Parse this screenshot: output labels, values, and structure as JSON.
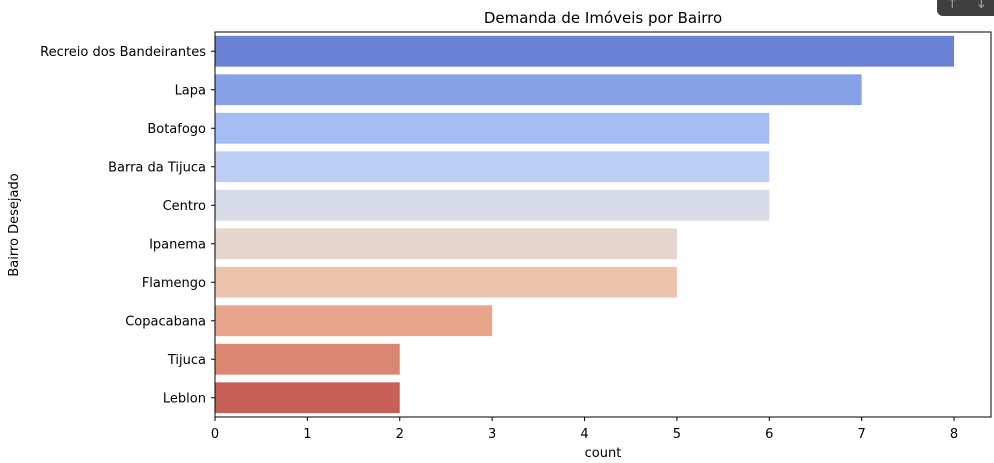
{
  "chart_data": {
    "type": "bar",
    "orientation": "horizontal",
    "title": "Demanda de Imóveis por Bairro",
    "xlabel": "count",
    "ylabel": "Bairro Desejado",
    "categories": [
      "Recreio dos Bandeirantes",
      "Lapa",
      "Botafogo",
      "Barra da Tijuca",
      "Centro",
      "Ipanema",
      "Flamengo",
      "Copacabana",
      "Tijuca",
      "Leblon"
    ],
    "values": [
      8,
      7,
      6,
      6,
      6,
      5,
      5,
      3,
      2,
      2
    ],
    "xlim": [
      0,
      8.4
    ],
    "xticks": [
      0,
      1,
      2,
      3,
      4,
      5,
      6,
      7,
      8
    ],
    "colors": [
      "#6a80d5",
      "#86a1e7",
      "#a3bcf3",
      "#bccff5",
      "#d6dbe7",
      "#e5d5cc",
      "#ecc4ae",
      "#e8a58c",
      "#db8670",
      "#c65f55"
    ],
    "grid": false,
    "palette": "coolwarm"
  },
  "toolbar": {
    "up_icon": "arrow-up-icon",
    "down_icon": "arrow-down-icon"
  }
}
